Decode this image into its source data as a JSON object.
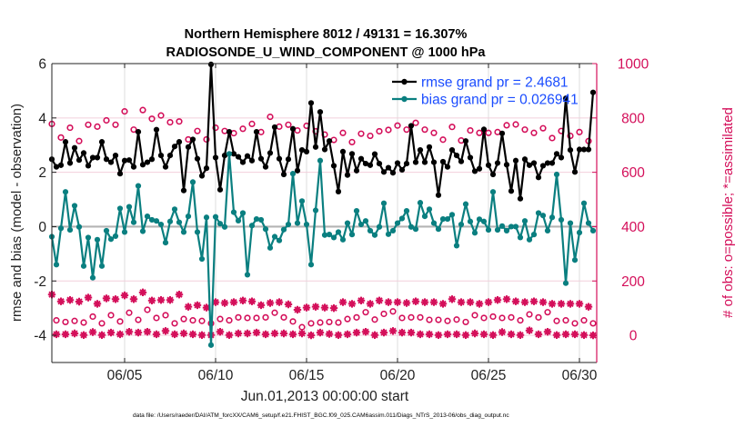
{
  "chart_data": {
    "type": "line",
    "title": [
      "Northern Hemisphere 8012 / 49131 = 16.307%",
      "RADIOSONDE_U_WIND_COMPONENT @ 1000 hPa"
    ],
    "xlabel": "Jun.01,2013 00:00:00 start",
    "ylabel": "rmse and bias (model - observation)",
    "ylabel_right": "# of obs: o=possible; *=assimilated",
    "footnote": "data file: /Users/raeder/DAI/ATM_forcXX/CAM6_setup/f.e21.FHIST_BGC.f09_025.CAM6assim.011/Diags_NTrS_2013-06/obs_diag_output.nc",
    "x_start": "2013-06-01 00:00",
    "x_step_hours": 6,
    "xlim_days": [
      "06/01",
      "07/01"
    ],
    "xticks": [
      {
        "day": 5,
        "label": "06/05"
      },
      {
        "day": 10,
        "label": "06/10"
      },
      {
        "day": 15,
        "label": "06/15"
      },
      {
        "day": 20,
        "label": "06/20"
      },
      {
        "day": 25,
        "label": "06/25"
      },
      {
        "day": 30,
        "label": "06/30"
      }
    ],
    "ylim": [
      -5,
      6
    ],
    "yticks": [
      -4,
      -2,
      0,
      2,
      4,
      6
    ],
    "ylim_right": [
      -100,
      1000
    ],
    "yticks_right": [
      0,
      200,
      400,
      600,
      800,
      1000
    ],
    "grid": true,
    "legend_placement": "top-right",
    "colors": {
      "rmse": "#000000",
      "bias": "#0a7f80",
      "counts": "#d40f5a",
      "legend_text": "#1a4cff",
      "zero_line": "#b4b4b4"
    },
    "series": [
      {
        "name": "rmse grand pr = 2.4681",
        "axis": "left",
        "marker": "filled-circle",
        "values": [
          2.48,
          2.2,
          2.26,
          3.12,
          2.34,
          2.9,
          2.45,
          2.71,
          2.24,
          2.54,
          2.54,
          3.12,
          2.48,
          2.37,
          2.62,
          1.95,
          2.43,
          2.45,
          2.2,
          3.49,
          2.28,
          2.37,
          2.48,
          3.57,
          2.62,
          2.2,
          2.62,
          2.95,
          3.12,
          1.33,
          2.93,
          3.21,
          2.5,
          1.87,
          2.15,
          5.97,
          2.54,
          1.36,
          2.62,
          3.49,
          2.68,
          2.57,
          2.37,
          2.6,
          2.43,
          3.49,
          2.5,
          2.2,
          2.71,
          3.66,
          2.5,
          1.92,
          2.48,
          3.6,
          2.06,
          2.82,
          2.76,
          4.55,
          2.93,
          4.22,
          2.84,
          3.15,
          2.24,
          1.29,
          2.76,
          1.9,
          2.68,
          2.06,
          2.5,
          2.32,
          2.26,
          2.67,
          2.32,
          2.01,
          2.17,
          1.98,
          2.34,
          2.09,
          2.32,
          3.71,
          2.37,
          2.82,
          2.37,
          2.93,
          2.37,
          1.16,
          2.39,
          2.2,
          2.82,
          2.62,
          2.4,
          3.15,
          2.54,
          2.04,
          2.13,
          3.58,
          2.26,
          1.92,
          2.34,
          3.43,
          2.28,
          1.31,
          2.43,
          1.03,
          2.48,
          2.26,
          2.34,
          1.81,
          2.24,
          2.34,
          2.34,
          2.68,
          2.54,
          4.72,
          2.82,
          2.01,
          2.84,
          2.84,
          2.84,
          4.94
        ]
      },
      {
        "name": "bias grand pr = 0.026941",
        "axis": "left",
        "marker": "filled-circle",
        "values": [
          -0.37,
          -1.4,
          -0.06,
          1.28,
          -0.12,
          0.77,
          -0.01,
          -1.45,
          -0.4,
          -1.88,
          -0.48,
          -1.45,
          -0.15,
          -0.46,
          -0.35,
          0.67,
          -0.2,
          0.73,
          0.16,
          1.5,
          -0.17,
          0.38,
          0.25,
          0.21,
          0.08,
          -0.59,
          0.19,
          0.64,
          0.16,
          -0.2,
          0.38,
          1.64,
          -0.2,
          -1.19,
          0.34,
          -4.36,
          0.36,
          0.11,
          -0.01,
          2.68,
          0.53,
          0.22,
          0.5,
          -1.77,
          0.04,
          0.28,
          0.25,
          -0.09,
          -0.78,
          -0.37,
          -0.51,
          -0.11,
          0.08,
          1.95,
          0.13,
          0.94,
          0.08,
          -1.4,
          0.6,
          2.43,
          -0.31,
          -0.29,
          -0.4,
          -0.2,
          -0.48,
          0.13,
          -0.29,
          0.58,
          0.08,
          0.21,
          -0.15,
          -0.31,
          -0.01,
          0.86,
          -0.28,
          -0.15,
          0.13,
          0.3,
          0.58,
          -0.01,
          -0.09,
          0.88,
          0.38,
          0.64,
          0.13,
          -0.09,
          0.28,
          0.28,
          0.44,
          -0.7,
          0.08,
          0.83,
          0.19,
          -0.23,
          0.27,
          0.19,
          -0.12,
          1.28,
          -0.12,
          0.02,
          -0.15,
          0.0,
          0.0,
          -0.4,
          0.21,
          -0.48,
          -0.29,
          0.5,
          0.41,
          -0.15,
          0.34,
          1.92,
          0.25,
          -2.08,
          0.13,
          -1.23,
          -0.22,
          0.86,
          0.13,
          -0.15
        ]
      },
      {
        "name": "possible",
        "axis": "right",
        "marker": "open-circle",
        "values": [
          778,
          55,
          728,
          49,
          764,
          53,
          715,
          47,
          775,
          69,
          768,
          44,
          791,
          74,
          775,
          51,
          824,
          83,
          757,
          57,
          829,
          94,
          797,
          64,
          809,
          74,
          784,
          44,
          787,
          60,
          721,
          55,
          752,
          53,
          721,
          44,
          764,
          60,
          752,
          55,
          744,
          66,
          760,
          64,
          778,
          64,
          748,
          66,
          804,
          83,
          768,
          66,
          775,
          51,
          754,
          30,
          771,
          44,
          751,
          47,
          739,
          49,
          719,
          47,
          745,
          60,
          711,
          66,
          742,
          85,
          734,
          58,
          751,
          79,
          756,
          88,
          772,
          64,
          757,
          66,
          782,
          66,
          757,
          57,
          745,
          57,
          720,
          53,
          767,
          58,
          717,
          49,
          754,
          74,
          745,
          64,
          745,
          69,
          748,
          64,
          773,
          66,
          776,
          55,
          757,
          77,
          745,
          66,
          762,
          85,
          726,
          53,
          752,
          55,
          734,
          44,
          748,
          55,
          715,
          44
        ]
      },
      {
        "name": "assimilated",
        "axis": "right",
        "marker": "asterisk",
        "values": [
          150,
          4,
          125,
          4,
          130,
          7,
          124,
          1,
          139,
          12,
          116,
          1,
          136,
          10,
          133,
          4,
          147,
          13,
          133,
          10,
          158,
          13,
          128,
          4,
          130,
          16,
          130,
          4,
          150,
          7,
          105,
          4,
          111,
          1,
          102,
          1,
          122,
          13,
          119,
          1,
          122,
          7,
          128,
          7,
          125,
          10,
          111,
          4,
          119,
          7,
          122,
          7,
          114,
          4,
          94,
          7,
          102,
          0,
          105,
          10,
          102,
          5,
          100,
          1,
          122,
          4,
          116,
          10,
          128,
          13,
          116,
          1,
          128,
          10,
          122,
          16,
          122,
          10,
          119,
          10,
          125,
          4,
          122,
          4,
          122,
          1,
          116,
          4,
          133,
          4,
          122,
          1,
          122,
          7,
          116,
          4,
          122,
          1,
          130,
          12,
          133,
          4,
          125,
          1,
          122,
          18,
          125,
          4,
          122,
          13,
          116,
          1,
          116,
          4,
          116,
          4,
          116,
          1,
          105,
          0
        ]
      }
    ]
  }
}
